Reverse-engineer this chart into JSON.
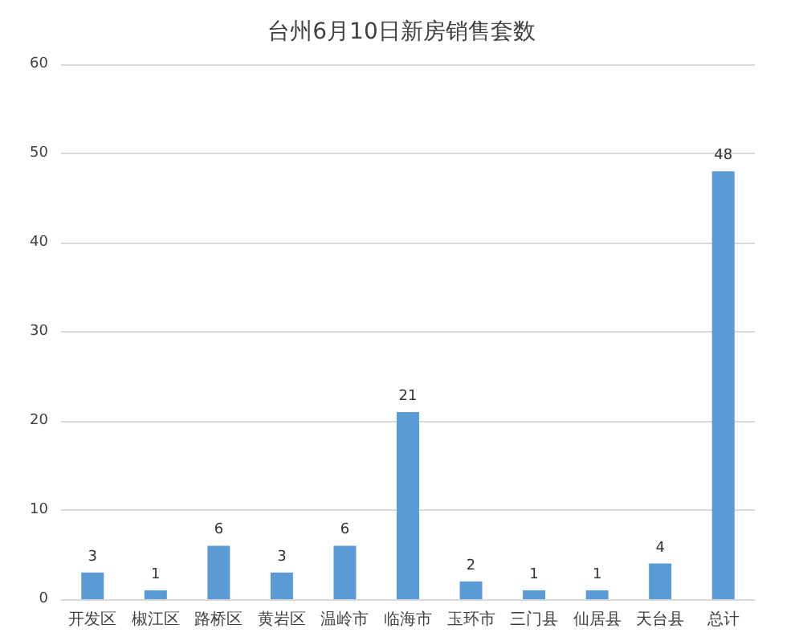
{
  "chart_data": {
    "type": "bar",
    "title": "台州6月10日新房销售套数",
    "categories": [
      "开发区",
      "椒江区",
      "路桥区",
      "黄岩区",
      "温岭市",
      "临海市",
      "玉环市",
      "三门县",
      "仙居县",
      "天台县",
      "总计"
    ],
    "values": [
      3,
      1,
      6,
      3,
      6,
      21,
      2,
      1,
      1,
      4,
      48
    ],
    "color": "#5b9bd5",
    "ylim": [
      0,
      60
    ],
    "yticks": [
      0,
      10,
      20,
      30,
      40,
      50,
      60
    ],
    "grid": "y",
    "data_labels": true
  }
}
